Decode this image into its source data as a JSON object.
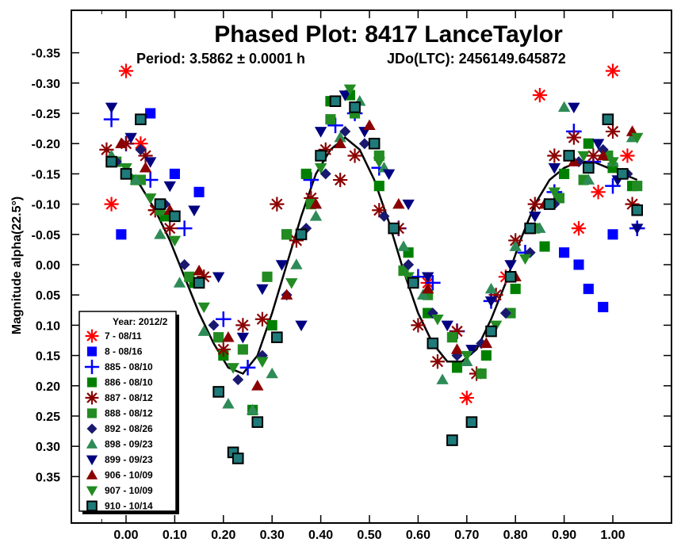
{
  "chart_data": {
    "type": "scatter",
    "title": "Phased Plot: 8417 LanceTaylor",
    "subtitle_period": "Period: 3.5862 ± 0.0001 h",
    "subtitle_epoch": "JDo(LTC): 2456149.645872",
    "xlabel": "",
    "ylabel": "Magnitude alpha(22.5°)",
    "xlim": [
      -0.12,
      1.1
    ],
    "ylim": [
      -0.4,
      0.43
    ],
    "y_inverted": true,
    "grid": false,
    "legend_position": "bottom-left",
    "legend_title": "Year: 2012/2",
    "x_ticks": [
      "0.00",
      "0.10",
      "0.20",
      "0.30",
      "0.40",
      "0.50",
      "0.60",
      "0.70",
      "0.80",
      "0.90",
      "1.00"
    ],
    "x_tick_values": [
      0.0,
      0.1,
      0.2,
      0.3,
      0.4,
      0.5,
      0.6,
      0.7,
      0.8,
      0.9,
      1.0
    ],
    "y_ticks": [
      "-0.35",
      "-0.30",
      "-0.25",
      "-0.20",
      "-0.15",
      "-0.10",
      "-0.05",
      "0.00",
      "0.05",
      "0.10",
      "0.15",
      "0.20",
      "0.25",
      "0.30",
      "0.35"
    ],
    "y_tick_values": [
      -0.35,
      -0.3,
      -0.25,
      -0.2,
      -0.15,
      -0.1,
      -0.05,
      0.0,
      0.05,
      0.1,
      0.15,
      0.2,
      0.25,
      0.3,
      0.35
    ],
    "series": [
      {
        "name": "7 - 08/11",
        "marker": "asterisk",
        "color": "#ff0000",
        "x": [
          -0.03,
          0.0,
          0.03,
          0.06,
          0.62,
          0.7,
          0.78,
          0.85,
          0.93,
          0.97,
          1.0,
          1.03
        ],
        "y": [
          -0.1,
          -0.32,
          -0.2,
          -0.09,
          0.03,
          0.22,
          0.02,
          -0.28,
          -0.06,
          -0.12,
          -0.32,
          -0.18
        ]
      },
      {
        "name": "8 - 08/16",
        "marker": "square",
        "color": "#0000ff",
        "x": [
          -0.01,
          0.05,
          0.1,
          0.15,
          0.9,
          0.93,
          0.95,
          0.98,
          1.0
        ],
        "y": [
          -0.05,
          -0.25,
          -0.15,
          -0.12,
          -0.02,
          0.0,
          0.04,
          0.07,
          -0.05
        ]
      },
      {
        "name": "885 - 08/10",
        "marker": "plus",
        "color": "#0000ff",
        "x": [
          -0.03,
          0.0,
          0.05,
          0.12,
          0.2,
          0.25,
          0.38,
          0.43,
          0.47,
          0.52,
          0.56,
          0.6,
          0.63,
          0.68,
          0.75,
          0.82,
          0.88,
          0.92,
          0.96,
          1.0,
          1.05
        ],
        "y": [
          -0.24,
          -0.2,
          -0.14,
          -0.06,
          0.09,
          0.17,
          -0.14,
          -0.23,
          -0.25,
          -0.16,
          -0.06,
          0.02,
          0.03,
          0.11,
          0.06,
          -0.02,
          -0.12,
          -0.22,
          -0.17,
          -0.13,
          -0.06
        ]
      },
      {
        "name": "886 - 08/10",
        "marker": "square",
        "color": "#008000",
        "x": [
          0.02,
          0.08,
          0.14,
          0.2,
          0.26,
          0.3,
          0.33,
          0.37,
          0.42,
          0.46,
          0.52,
          0.58,
          0.62,
          0.68,
          0.74,
          0.8,
          0.86,
          0.9,
          0.95,
          1.0,
          1.04
        ],
        "y": [
          -0.14,
          -0.08,
          0.03,
          0.15,
          0.24,
          0.1,
          -0.05,
          -0.15,
          -0.27,
          -0.28,
          -0.13,
          -0.02,
          0.08,
          0.17,
          0.15,
          0.04,
          -0.03,
          -0.15,
          -0.2,
          -0.16,
          -0.13
        ]
      },
      {
        "name": "887 - 08/12",
        "marker": "asterisk",
        "color": "#8b0000",
        "x": [
          -0.04,
          0.0,
          0.04,
          0.06,
          0.09,
          0.16,
          0.2,
          0.24,
          0.28,
          0.31,
          0.35,
          0.38,
          0.41,
          0.44,
          0.47,
          0.52,
          0.56,
          0.6,
          0.64,
          0.68,
          0.72,
          0.76,
          0.8,
          0.84,
          0.88,
          0.92,
          0.96,
          1.0,
          1.04
        ],
        "y": [
          -0.19,
          -0.2,
          -0.18,
          -0.09,
          -0.06,
          0.02,
          0.14,
          0.1,
          0.09,
          -0.1,
          -0.04,
          -0.11,
          -0.19,
          -0.14,
          -0.18,
          -0.09,
          -0.06,
          0.1,
          0.16,
          0.11,
          0.18,
          0.05,
          -0.04,
          -0.1,
          -0.18,
          -0.21,
          -0.18,
          -0.22,
          -0.1
        ]
      },
      {
        "name": "888 - 08/12",
        "marker": "square",
        "color": "#228b22",
        "x": [
          -0.02,
          0.03,
          0.07,
          0.13,
          0.19,
          0.24,
          0.29,
          0.33,
          0.38,
          0.42,
          0.47,
          0.52,
          0.57,
          0.62,
          0.67,
          0.73,
          0.79,
          0.84,
          0.89,
          0.94,
          0.99,
          1.05
        ],
        "y": [
          -0.17,
          -0.14,
          -0.09,
          0.02,
          0.12,
          0.14,
          0.02,
          -0.05,
          -0.1,
          -0.24,
          -0.25,
          -0.18,
          0.01,
          0.05,
          0.12,
          0.18,
          0.08,
          -0.06,
          -0.11,
          -0.14,
          -0.18,
          -0.13
        ]
      },
      {
        "name": "892 - 08/26",
        "marker": "diamond",
        "color": "#191970",
        "x": [
          -0.02,
          0.03,
          0.08,
          0.12,
          0.18,
          0.23,
          0.28,
          0.33,
          0.37,
          0.41,
          0.45,
          0.49,
          0.53,
          0.58,
          0.63,
          0.68,
          0.73,
          0.78,
          0.83,
          0.88,
          0.93,
          0.98,
          1.03
        ],
        "y": [
          -0.17,
          -0.19,
          -0.1,
          0.0,
          0.1,
          0.19,
          0.15,
          0.05,
          -0.06,
          -0.15,
          -0.22,
          -0.2,
          -0.08,
          0.0,
          0.08,
          0.15,
          0.13,
          0.08,
          -0.02,
          -0.1,
          -0.17,
          -0.19,
          -0.15
        ]
      },
      {
        "name": "898 - 09/23",
        "marker": "triangle-up",
        "color": "#2e8b57",
        "x": [
          -0.03,
          0.02,
          0.07,
          0.11,
          0.16,
          0.21,
          0.26,
          0.3,
          0.35,
          0.39,
          0.44,
          0.48,
          0.53,
          0.57,
          0.61,
          0.65,
          0.7,
          0.75,
          0.8,
          0.85,
          0.9,
          0.95,
          1.0,
          1.04
        ],
        "y": [
          -0.18,
          -0.14,
          -0.05,
          0.03,
          0.11,
          0.23,
          0.24,
          0.18,
          0.0,
          -0.08,
          -0.21,
          -0.27,
          -0.16,
          -0.03,
          0.05,
          0.19,
          0.16,
          0.04,
          -0.03,
          -0.06,
          -0.26,
          -0.14,
          -0.17,
          -0.21
        ]
      },
      {
        "name": "899 - 09/23",
        "marker": "triangle-down",
        "color": "#000080",
        "x": [
          -0.03,
          0.01,
          0.05,
          0.09,
          0.14,
          0.19,
          0.24,
          0.28,
          0.32,
          0.36,
          0.4,
          0.45,
          0.49,
          0.54,
          0.58,
          0.62,
          0.66,
          0.71,
          0.75,
          0.79,
          0.84,
          0.88,
          0.92,
          0.97,
          1.01,
          1.05
        ],
        "y": [
          -0.26,
          -0.21,
          -0.17,
          -0.13,
          -0.09,
          0.02,
          0.12,
          0.04,
          0.0,
          0.1,
          -0.22,
          -0.28,
          -0.22,
          -0.15,
          -0.1,
          0.02,
          0.1,
          0.14,
          0.06,
          0.0,
          -0.08,
          -0.16,
          -0.26,
          -0.2,
          -0.14,
          -0.06
        ]
      },
      {
        "name": "906 - 10/09",
        "marker": "triangle-up",
        "color": "#8b0000",
        "x": [
          -0.01,
          0.04,
          0.09,
          0.15,
          0.21,
          0.27,
          0.33,
          0.39,
          0.44,
          0.5,
          0.56,
          0.62,
          0.68,
          0.74,
          0.8,
          0.86,
          0.92,
          0.98,
          1.04
        ],
        "y": [
          -0.2,
          -0.16,
          -0.09,
          0.01,
          0.12,
          0.2,
          0.05,
          -0.1,
          -0.2,
          -0.23,
          -0.1,
          0.04,
          0.14,
          0.13,
          0.02,
          -0.1,
          -0.17,
          -0.18,
          -0.22
        ]
      },
      {
        "name": "907 - 10/09",
        "marker": "triangle-down",
        "color": "#228b22",
        "x": [
          0.0,
          0.05,
          0.1,
          0.16,
          0.22,
          0.28,
          0.34,
          0.4,
          0.46,
          0.52,
          0.58,
          0.64,
          0.7,
          0.76,
          0.82,
          0.88,
          0.94,
          1.0,
          1.05
        ],
        "y": [
          -0.16,
          -0.11,
          -0.04,
          0.07,
          0.17,
          0.16,
          0.03,
          -0.16,
          -0.29,
          -0.17,
          0.02,
          0.09,
          0.15,
          0.1,
          -0.01,
          -0.12,
          -0.18,
          -0.17,
          -0.21
        ]
      },
      {
        "name": "910 - 10/14",
        "marker": "square",
        "color": "#1f7a7a",
        "x": [
          -0.03,
          0.0,
          0.03,
          0.07,
          0.1,
          0.15,
          0.19,
          0.22,
          0.23,
          0.27,
          0.31,
          0.36,
          0.4,
          0.43,
          0.47,
          0.51,
          0.55,
          0.59,
          0.63,
          0.67,
          0.71,
          0.75,
          0.79,
          0.83,
          0.87,
          0.91,
          0.95,
          0.99,
          1.02,
          1.05
        ],
        "y": [
          -0.17,
          -0.15,
          -0.24,
          -0.1,
          -0.08,
          0.03,
          0.21,
          0.31,
          0.32,
          0.26,
          0.12,
          -0.05,
          -0.18,
          -0.27,
          -0.26,
          -0.2,
          -0.06,
          0.03,
          0.13,
          0.29,
          0.26,
          0.11,
          0.02,
          -0.06,
          -0.1,
          -0.18,
          -0.16,
          -0.24,
          -0.15,
          -0.09
        ]
      }
    ],
    "fit_curve": {
      "name": "",
      "color": "#000000",
      "x": [
        0.0,
        0.03,
        0.06,
        0.09,
        0.12,
        0.15,
        0.18,
        0.21,
        0.24,
        0.27,
        0.3,
        0.33,
        0.36,
        0.39,
        0.42,
        0.45,
        0.48,
        0.51,
        0.54,
        0.57,
        0.6,
        0.63,
        0.66,
        0.69,
        0.72,
        0.75,
        0.78,
        0.81,
        0.84,
        0.87,
        0.9,
        0.93,
        0.96,
        0.99,
        1.02,
        1.05
      ],
      "y": [
        -0.16,
        -0.13,
        -0.09,
        -0.04,
        0.02,
        0.08,
        0.13,
        0.17,
        0.18,
        0.15,
        0.08,
        0.0,
        -0.08,
        -0.15,
        -0.19,
        -0.21,
        -0.19,
        -0.14,
        -0.07,
        0.01,
        0.08,
        0.13,
        0.16,
        0.16,
        0.14,
        0.09,
        0.03,
        -0.04,
        -0.1,
        -0.14,
        -0.16,
        -0.17,
        -0.17,
        -0.16,
        -0.15,
        -0.14
      ]
    }
  }
}
